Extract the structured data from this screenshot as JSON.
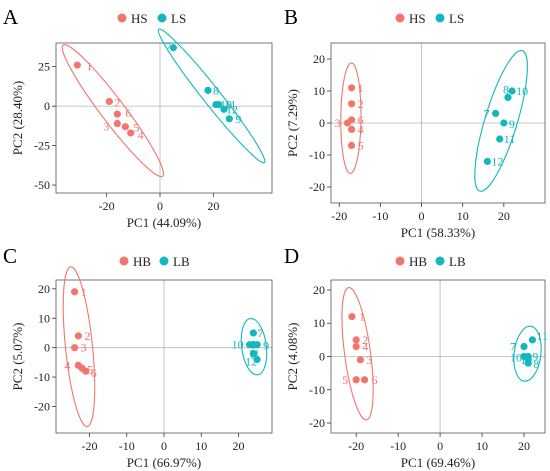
{
  "colors": {
    "groupA": "#F2766E",
    "groupB": "#12B8BE"
  },
  "chart_data": [
    {
      "type": "scatter",
      "panel": "A",
      "xlabel": "PC1 (44.09%)",
      "ylabel": "PC2 (28.40%)",
      "xlim": [
        -39,
        42
      ],
      "ylim": [
        -55,
        40
      ],
      "xticks": [
        -20,
        0,
        20
      ],
      "yticks": [
        25,
        0,
        -25,
        -50
      ],
      "legend_placement": "top",
      "series": [
        {
          "name": "HS",
          "color": "#F2766E",
          "points": [
            {
              "label": "1",
              "x": -31,
              "y": 26
            },
            {
              "label": "2",
              "x": -19,
              "y": 3
            },
            {
              "label": "6",
              "x": -16,
              "y": -5
            },
            {
              "label": "3",
              "x": -16,
              "y": -11
            },
            {
              "label": "5",
              "x": -13,
              "y": -13
            },
            {
              "label": "4",
              "x": -11,
              "y": -17
            }
          ]
        },
        {
          "name": "LS",
          "color": "#12B8BE",
          "points": [
            {
              "label": "7",
              "x": 5,
              "y": 37
            },
            {
              "label": "8",
              "x": 18,
              "y": 10
            },
            {
              "label": "10",
              "x": 21,
              "y": 1
            },
            {
              "label": "11",
              "x": 22,
              "y": 1
            },
            {
              "label": "12",
              "x": 24,
              "y": -2
            },
            {
              "label": "9",
              "x": 26,
              "y": -8
            }
          ]
        }
      ]
    },
    {
      "type": "scatter",
      "panel": "B",
      "xlabel": "PC1 (58.33%)",
      "ylabel": "PC2 (7.29%)",
      "xlim": [
        -22,
        30
      ],
      "ylim": [
        -25,
        25
      ],
      "xticks": [
        -20,
        -10,
        0,
        10,
        20
      ],
      "yticks": [
        20,
        10,
        0,
        -10,
        -20
      ],
      "legend_placement": "top",
      "series": [
        {
          "name": "HS",
          "color": "#F2766E",
          "points": [
            {
              "label": "1",
              "x": -17,
              "y": 11
            },
            {
              "label": "2",
              "x": -17,
              "y": 6
            },
            {
              "label": "3",
              "x": -18,
              "y": 0
            },
            {
              "label": "4",
              "x": -17,
              "y": -2
            },
            {
              "label": "6",
              "x": -17,
              "y": 1
            },
            {
              "label": "5",
              "x": -17,
              "y": -7
            }
          ]
        },
        {
          "name": "LS",
          "color": "#12B8BE",
          "points": [
            {
              "label": "10",
              "x": 22,
              "y": 10
            },
            {
              "label": "8",
              "x": 21,
              "y": 8
            },
            {
              "label": "7",
              "x": 18,
              "y": 3
            },
            {
              "label": "9",
              "x": 20,
              "y": 0
            },
            {
              "label": "11",
              "x": 19,
              "y": -5
            },
            {
              "label": "12",
              "x": 16,
              "y": -12
            }
          ]
        }
      ]
    },
    {
      "type": "scatter",
      "panel": "C",
      "xlabel": "PC1 (66.97%)",
      "ylabel": "PC2 (5.07%)",
      "xlim": [
        -29,
        29
      ],
      "ylim": [
        -29,
        23
      ],
      "xticks": [
        -20,
        -10,
        0,
        10,
        20
      ],
      "yticks": [
        20,
        10,
        0,
        -10,
        -20
      ],
      "legend_placement": "top",
      "series": [
        {
          "name": "HB",
          "color": "#F2766E",
          "points": [
            {
              "label": "1",
              "x": -24,
              "y": 19
            },
            {
              "label": "2",
              "x": -23,
              "y": 4
            },
            {
              "label": "3",
              "x": -24,
              "y": 0
            },
            {
              "label": "4",
              "x": -23,
              "y": -6
            },
            {
              "label": "5",
              "x": -22,
              "y": -7
            },
            {
              "label": "6",
              "x": -21,
              "y": -8
            }
          ]
        },
        {
          "name": "LB",
          "color": "#12B8BE",
          "points": [
            {
              "label": "7",
              "x": 24,
              "y": 5
            },
            {
              "label": "10",
              "x": 23,
              "y": 1
            },
            {
              "label": "8",
              "x": 24,
              "y": 1
            },
            {
              "label": "9",
              "x": 25,
              "y": 1
            },
            {
              "label": "11",
              "x": 24,
              "y": -2
            },
            {
              "label": "12",
              "x": 25,
              "y": -4
            }
          ]
        }
      ]
    },
    {
      "type": "scatter",
      "panel": "D",
      "xlabel": "PC1 (69.46%)",
      "ylabel": "PC2 (4.08%)",
      "xlim": [
        -26,
        25
      ],
      "ylim": [
        -23,
        23
      ],
      "xticks": [
        -20,
        -10,
        0,
        10,
        20
      ],
      "yticks": [
        20,
        10,
        0,
        -10,
        -20
      ],
      "legend_placement": "top",
      "series": [
        {
          "name": "HB",
          "color": "#F2766E",
          "points": [
            {
              "label": "1",
              "x": -21,
              "y": 12
            },
            {
              "label": "2",
              "x": -20,
              "y": 5
            },
            {
              "label": "4",
              "x": -20,
              "y": 3
            },
            {
              "label": "3",
              "x": -19,
              "y": -1
            },
            {
              "label": "5",
              "x": -20,
              "y": -7
            },
            {
              "label": "6",
              "x": -18,
              "y": -7
            }
          ]
        },
        {
          "name": "LB",
          "color": "#12B8BE",
          "points": [
            {
              "label": "11",
              "x": 22,
              "y": 5
            },
            {
              "label": "7",
              "x": 20,
              "y": 3
            },
            {
              "label": "10",
              "x": 20,
              "y": 0
            },
            {
              "label": "12",
              "x": 21,
              "y": -1
            },
            {
              "label": "9",
              "x": 21,
              "y": 0
            },
            {
              "label": "8",
              "x": 21,
              "y": -2
            }
          ]
        }
      ]
    }
  ]
}
